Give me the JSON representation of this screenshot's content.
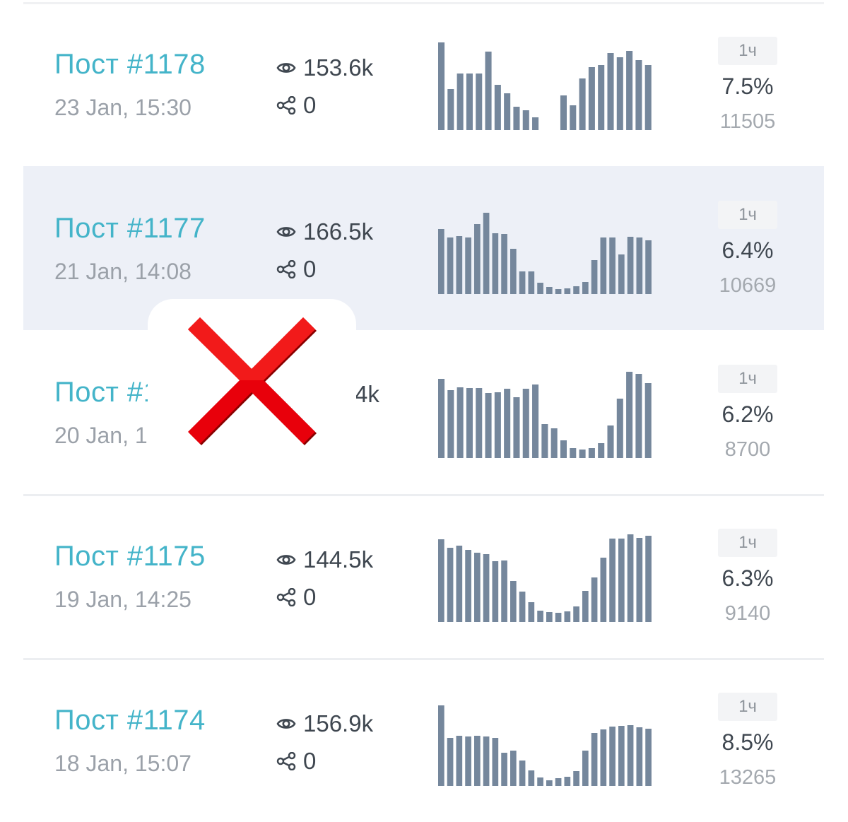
{
  "posts": [
    {
      "title": "Пост #1178",
      "date": "23 Jan, 15:30",
      "views": "153.6k",
      "shares": "0",
      "badge": "1ч",
      "percent": "7.5%",
      "count": "11505",
      "highlighted": false,
      "spark": [
        124,
        58,
        80,
        80,
        80,
        111,
        64,
        52,
        33,
        28,
        18,
        0,
        0,
        49,
        35,
        73,
        89,
        92,
        109,
        103,
        112,
        99,
        92
      ]
    },
    {
      "title": "Пост #1177",
      "date": "21 Jan, 14:08",
      "views": "166.5k",
      "shares": "0",
      "badge": "1ч",
      "percent": "6.4%",
      "count": "10669",
      "highlighted": true,
      "spark": [
        92,
        80,
        82,
        80,
        99,
        115,
        86,
        85,
        64,
        32,
        32,
        16,
        10,
        7,
        8,
        11,
        17,
        48,
        80,
        80,
        56,
        81,
        80,
        76
      ]
    },
    {
      "title": "Пост #1176",
      "date": "20 Jan, 1",
      "views": "",
      "views_visible_fragment": "4k",
      "shares": "",
      "badge": "1ч",
      "percent": "6.2%",
      "count": "8700",
      "highlighted": false,
      "spark": [
        112,
        96,
        100,
        99,
        99,
        92,
        93,
        98,
        86,
        98,
        104,
        48,
        42,
        25,
        14,
        12,
        14,
        21,
        46,
        84,
        122,
        119,
        106
      ]
    },
    {
      "title": "Пост #1175",
      "date": "19 Jan, 14:25",
      "views": "144.5k",
      "shares": "0",
      "badge": "1ч",
      "percent": "6.3%",
      "count": "9140",
      "highlighted": false,
      "spark": [
        117,
        105,
        108,
        102,
        98,
        96,
        86,
        87,
        58,
        43,
        28,
        16,
        14,
        13,
        15,
        22,
        44,
        63,
        91,
        118,
        118,
        124,
        119,
        122
      ]
    },
    {
      "title": "Пост #1174",
      "date": "18 Jan, 15:07",
      "views": "156.9k",
      "shares": "0",
      "badge": "1ч",
      "percent": "8.5%",
      "count": "13265",
      "highlighted": false,
      "spark": [
        114,
        68,
        71,
        70,
        71,
        70,
        68,
        47,
        50,
        36,
        22,
        12,
        8,
        11,
        13,
        21,
        50,
        75,
        80,
        84,
        85,
        86,
        83,
        81
      ]
    }
  ],
  "icons": {
    "views": "eye-icon",
    "shares": "share-icon",
    "overlay": "red-cross-mark"
  },
  "colors": {
    "title": "#44b4c9",
    "bars": "#75879c",
    "highlight": "#edf0f7",
    "cross": "#e8000b"
  }
}
